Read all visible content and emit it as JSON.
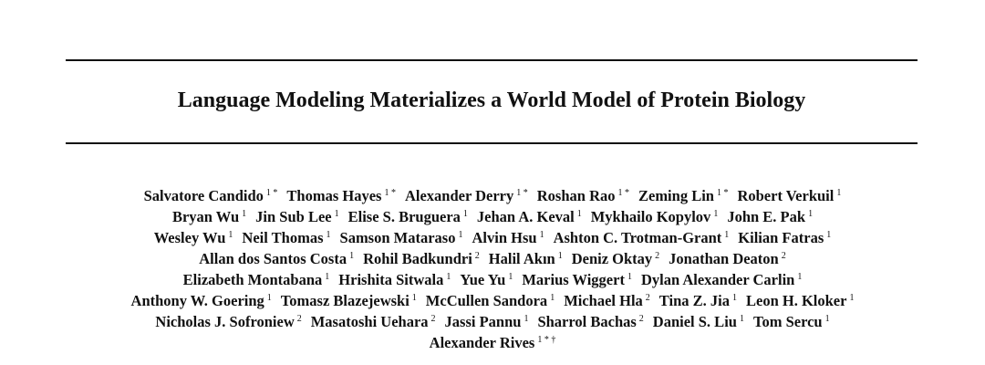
{
  "paper": {
    "title": "Language Modeling Materializes a World Model of Protein Biology",
    "author_lines": [
      [
        {
          "name": "Salvatore Candido",
          "aff": "1 *"
        },
        {
          "name": "Thomas Hayes",
          "aff": "1 *"
        },
        {
          "name": "Alexander Derry",
          "aff": "1 *"
        },
        {
          "name": "Roshan Rao",
          "aff": "1 *"
        },
        {
          "name": "Zeming Lin",
          "aff": "1 *"
        },
        {
          "name": "Robert Verkuil",
          "aff": "1"
        }
      ],
      [
        {
          "name": "Bryan Wu",
          "aff": "1"
        },
        {
          "name": "Jin Sub Lee",
          "aff": "1"
        },
        {
          "name": "Elise S. Bruguera",
          "aff": "1"
        },
        {
          "name": "Jehan A. Keval",
          "aff": "1"
        },
        {
          "name": "Mykhailo Kopylov",
          "aff": "1"
        },
        {
          "name": "John E. Pak",
          "aff": "1"
        }
      ],
      [
        {
          "name": "Wesley Wu",
          "aff": "1"
        },
        {
          "name": "Neil Thomas",
          "aff": "1"
        },
        {
          "name": "Samson Mataraso",
          "aff": "1"
        },
        {
          "name": "Alvin Hsu",
          "aff": "1"
        },
        {
          "name": "Ashton C. Trotman-Grant",
          "aff": "1"
        },
        {
          "name": "Kilian Fatras",
          "aff": "1"
        }
      ],
      [
        {
          "name": "Allan dos Santos Costa",
          "aff": "1"
        },
        {
          "name": "Rohil Badkundri",
          "aff": "2"
        },
        {
          "name": "Halil Akın",
          "aff": "1"
        },
        {
          "name": "Deniz Oktay",
          "aff": "2"
        },
        {
          "name": "Jonathan Deaton",
          "aff": "2"
        }
      ],
      [
        {
          "name": "Elizabeth Montabana",
          "aff": "1"
        },
        {
          "name": "Hrishita Sitwala",
          "aff": "1"
        },
        {
          "name": "Yue Yu",
          "aff": "1"
        },
        {
          "name": "Marius Wiggert",
          "aff": "1"
        },
        {
          "name": "Dylan Alexander Carlin",
          "aff": "1"
        }
      ],
      [
        {
          "name": "Anthony W. Goering",
          "aff": "1"
        },
        {
          "name": "Tomasz Blazejewski",
          "aff": "1"
        },
        {
          "name": "McCullen Sandora",
          "aff": "1"
        },
        {
          "name": "Michael Hla",
          "aff": "2"
        },
        {
          "name": "Tina Z. Jia",
          "aff": "1"
        },
        {
          "name": "Leon H. Kloker",
          "aff": "1"
        }
      ],
      [
        {
          "name": "Nicholas J. Sofroniew",
          "aff": "2"
        },
        {
          "name": "Masatoshi Uehara",
          "aff": "2"
        },
        {
          "name": "Jassi Pannu",
          "aff": "1"
        },
        {
          "name": "Sharrol Bachas",
          "aff": "2"
        },
        {
          "name": "Daniel S. Liu",
          "aff": "1"
        },
        {
          "name": "Tom Sercu",
          "aff": "1"
        }
      ],
      [
        {
          "name": "Alexander Rives",
          "aff": "1 * †"
        }
      ]
    ]
  }
}
